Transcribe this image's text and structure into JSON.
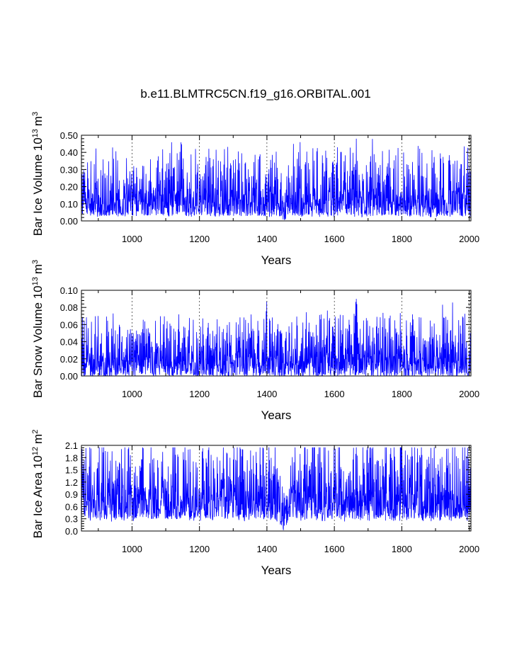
{
  "chart_data": {
    "title": "b.e11.BLMTRC5CN.f19_g16.ORBITAL.001",
    "type": "line",
    "series_color": "#0000ff",
    "x_range": [
      850,
      2005
    ],
    "x_ticks": [
      1000,
      1200,
      1400,
      1600,
      1800,
      2000
    ],
    "x_tick_labels": [
      "1000",
      "1200",
      "1400",
      "1600",
      "1800",
      "2000"
    ],
    "x_gridlines": "dotted at major ticks",
    "panels": [
      {
        "id": "ice-volume",
        "ylabel_main": "Bar Ice Volume 10",
        "ylabel_exp": "13",
        "ylabel_unit": "m",
        "ylabel_unit_exp": "3",
        "xlabel": "Years",
        "ylim": [
          0.0,
          0.5
        ],
        "y_ticks": [
          0.0,
          0.1,
          0.2,
          0.3,
          0.4,
          0.5
        ],
        "y_tick_labels": [
          "0.00",
          "0.10",
          "0.20",
          "0.30",
          "0.40",
          "0.50"
        ],
        "series": {
          "name": "Bar Ice Volume",
          "mean": 0.19,
          "envelope_low": 0.03,
          "envelope_high": 0.35,
          "peak_max": 0.48,
          "low_events": [
            {
              "year": 1450,
              "min": 0.005
            }
          ],
          "high_events": [
            {
              "year": 1145,
              "value": 0.46
            },
            {
              "year": 1665,
              "value": 0.48
            }
          ]
        }
      },
      {
        "id": "snow-volume",
        "ylabel_main": "Bar Snow Volume 10",
        "ylabel_exp": "13",
        "ylabel_unit": "m",
        "ylabel_unit_exp": "3",
        "xlabel": "Years",
        "ylim": [
          0.0,
          0.1
        ],
        "y_ticks": [
          0.0,
          0.02,
          0.04,
          0.06,
          0.08,
          0.1
        ],
        "y_tick_labels": [
          "0.00",
          "0.02",
          "0.04",
          "0.06",
          "0.08",
          "0.10"
        ],
        "series": {
          "name": "Bar Snow Volume",
          "mean": 0.03,
          "envelope_low": 0.0,
          "envelope_high": 0.06,
          "peak_max": 0.09,
          "low_events": [
            {
              "year": 1450,
              "min": 0.0
            }
          ],
          "high_events": [
            {
              "year": 1400,
              "value": 0.088
            },
            {
              "year": 1665,
              "value": 0.09
            }
          ]
        }
      },
      {
        "id": "ice-area",
        "ylabel_main": "Bar Ice Area 10",
        "ylabel_exp": "12",
        "ylabel_unit": "m",
        "ylabel_unit_exp": "2",
        "xlabel": "Years",
        "ylim": [
          0.0,
          2.1
        ],
        "y_ticks": [
          0.0,
          0.3,
          0.6,
          0.9,
          1.2,
          1.5,
          1.8,
          2.1
        ],
        "y_tick_labels": [
          "0.0",
          "0.3",
          "0.6",
          "0.9",
          "1.2",
          "1.5",
          "1.8",
          "2.1"
        ],
        "series": {
          "name": "Bar Ice Area",
          "mean": 1.2,
          "envelope_low": 0.3,
          "envelope_high": 1.95,
          "peak_max": 2.05,
          "low_events": [
            {
              "year": 1450,
              "min": 0.02
            }
          ],
          "high_events": [
            {
              "year": 1665,
              "value": 2.05
            }
          ]
        }
      }
    ]
  }
}
